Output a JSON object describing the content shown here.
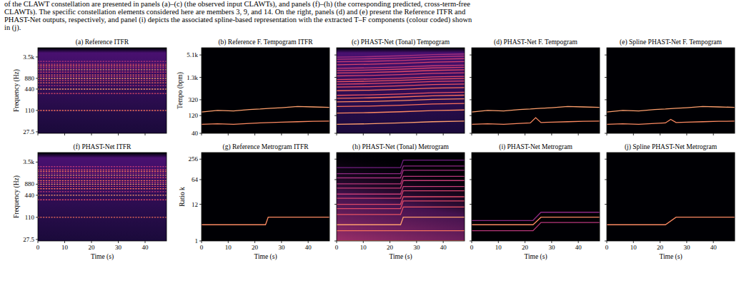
{
  "caption": [
    "of the CLAWT constellation are presented in panels (a)–(c) (the observed input CLAWTs), and panels (f)–(h) (the corresponding predicted, cross-term-free",
    "CLAWTs). The specific constellation elements considered here are members 3, 9, and 14. On the right, panels (d) and (e) present the Reference ITFR and",
    "PHAST-Net outputs, respectively, and panel (i) depicts the associated spline-based representation with the extracted T–F components (colour coded) shown",
    "in (j)."
  ],
  "chart_data": [
    {
      "type": "line",
      "title": "(a) Reference ITFR",
      "ylabel": "Frequency (Hz)",
      "log": "y",
      "tick_labels": "y",
      "line_style": "dotted",
      "xlim": [
        0,
        48
      ],
      "xticks": [
        0,
        10,
        20,
        30,
        40
      ],
      "ylim": [
        25,
        6400
      ],
      "yticks": [
        27.5,
        110,
        440,
        880,
        {
          "value": 3520,
          "label": "3.5k"
        }
      ],
      "x": [
        0,
        48
      ],
      "series": [
        {
          "color": "#f7705c",
          "values": [
            110,
            110
          ]
        },
        {
          "color": "#de4968",
          "values": [
            330,
            330
          ]
        },
        {
          "color": "#fe9f6d",
          "values": [
            440,
            440
          ]
        },
        {
          "color": "#c43c75",
          "values": [
            550,
            550
          ]
        },
        {
          "color": "#f7705c",
          "values": [
            660,
            660
          ]
        },
        {
          "color": "#de4968",
          "values": [
            770,
            770
          ]
        },
        {
          "color": "#fe9f6d",
          "values": [
            880,
            880
          ]
        },
        {
          "color": "#c43c75",
          "values": [
            990,
            990
          ]
        },
        {
          "color": "#f7705c",
          "values": [
            1100,
            1100
          ]
        },
        {
          "color": "#de4968",
          "values": [
            1320,
            1320
          ]
        },
        {
          "color": "#fe9f6d",
          "values": [
            1540,
            1540
          ]
        },
        {
          "color": "#c43c75",
          "values": [
            1760,
            1760
          ]
        },
        {
          "color": "#f7705c",
          "values": [
            1980,
            1980
          ]
        },
        {
          "color": "#de4968",
          "values": [
            2200,
            2200
          ]
        },
        {
          "color": "#b73779",
          "values": [
            2640,
            2640
          ]
        }
      ]
    },
    {
      "type": "line",
      "title": "(b) Reference F. Tempogram ITFR",
      "ylabel": "Tempo (bpm)",
      "log": "y",
      "tick_labels": "y",
      "xlim": [
        0,
        48
      ],
      "xticks": [
        0,
        10,
        20,
        30,
        40
      ],
      "ylim": [
        40,
        8000
      ],
      "yticks": [
        40,
        120,
        320,
        {
          "value": 1280,
          "label": "1.3k"
        },
        {
          "value": 5120,
          "label": "5.1k"
        }
      ],
      "x": [
        0,
        6,
        12,
        18,
        22,
        24,
        26,
        30,
        36,
        42,
        48
      ],
      "series": [
        {
          "color": "#fe9f6d",
          "values": [
            150,
            165,
            160,
            175,
            180,
            185,
            188,
            195,
            210,
            205,
            200
          ]
        },
        {
          "color": "#fc8961",
          "values": [
            70,
            72,
            70,
            74,
            76,
            77,
            78,
            80,
            82,
            84,
            85
          ]
        }
      ]
    },
    {
      "type": "line",
      "title": "(c) PHAST-Net (Tonal) Tempogram",
      "log": "y",
      "tick_labels": false,
      "xlim": [
        0,
        48
      ],
      "xticks": [
        0,
        10,
        20,
        30,
        40
      ],
      "ylim": [
        40,
        8000
      ],
      "yticks": [
        40,
        120,
        320,
        {
          "value": 1280,
          "label": "1.3k"
        },
        {
          "value": 5120,
          "label": "5.1k"
        }
      ],
      "x": [
        0,
        12,
        24,
        36,
        48
      ],
      "series": [
        {
          "color": "#fe9f6d",
          "values": [
            70,
            72,
            76,
            82,
            85
          ]
        },
        {
          "color": "#fc8961",
          "values": [
            140,
            144,
            152,
            164,
            170
          ]
        },
        {
          "color": "#f7705c",
          "values": [
            210,
            216,
            228,
            246,
            255
          ]
        },
        {
          "color": "#fc8961",
          "values": [
            280,
            288,
            304,
            328,
            340
          ]
        },
        {
          "color": "#f7705c",
          "values": [
            350,
            360,
            380,
            410,
            425
          ]
        },
        {
          "color": "#e85362",
          "values": [
            420,
            432,
            456,
            492,
            510
          ]
        },
        {
          "color": "#f7705c",
          "values": [
            560,
            576,
            608,
            656,
            680
          ]
        },
        {
          "color": "#e85362",
          "values": [
            700,
            720,
            760,
            820,
            850
          ]
        },
        {
          "color": "#de4968",
          "values": [
            840,
            864,
            912,
            984,
            1020
          ]
        },
        {
          "color": "#e85362",
          "values": [
            980,
            1008,
            1064,
            1148,
            1190
          ]
        },
        {
          "color": "#de4968",
          "values": [
            1120,
            1152,
            1216,
            1312,
            1360
          ]
        },
        {
          "color": "#d3436e",
          "values": [
            1400,
            1440,
            1520,
            1640,
            1700
          ]
        },
        {
          "color": "#de4968",
          "values": [
            1680,
            1728,
            1824,
            1968,
            2040
          ]
        },
        {
          "color": "#d3436e",
          "values": [
            1960,
            2016,
            2128,
            2296,
            2380
          ]
        },
        {
          "color": "#c43c75",
          "values": [
            2240,
            2304,
            2432,
            2624,
            2720
          ]
        },
        {
          "color": "#d3436e",
          "values": [
            2800,
            2880,
            3040,
            3280,
            3400
          ]
        },
        {
          "color": "#c43c75",
          "values": [
            3360,
            3456,
            3648,
            3936,
            4080
          ]
        },
        {
          "color": "#b73779",
          "values": [
            3920,
            4032,
            4256,
            4592,
            4760
          ]
        },
        {
          "color": "#a3307e",
          "values": [
            4480,
            4608,
            4864,
            5248,
            5440
          ]
        }
      ]
    },
    {
      "type": "line",
      "title": "(d) PHAST-Net F. Tempogram",
      "log": "y",
      "tick_labels": false,
      "xlim": [
        0,
        48
      ],
      "xticks": [
        0,
        10,
        20,
        30,
        40
      ],
      "ylim": [
        40,
        8000
      ],
      "yticks": [
        40,
        120,
        320,
        {
          "value": 1280,
          "label": "1.3k"
        },
        {
          "value": 5120,
          "label": "5.1k"
        }
      ],
      "x": [
        0,
        6,
        12,
        18,
        22,
        24,
        26,
        30,
        36,
        42,
        48
      ],
      "series": [
        {
          "color": "#fe9f6d",
          "values": [
            150,
            165,
            160,
            175,
            180,
            185,
            188,
            195,
            210,
            205,
            200
          ]
        },
        {
          "color": "#fc8961",
          "values": [
            70,
            72,
            70,
            74,
            76,
            105,
            78,
            80,
            82,
            84,
            85
          ]
        }
      ]
    },
    {
      "type": "line",
      "title": "(e) Spline PHAST-Net F. Tempogram",
      "log": "y",
      "tick_labels": false,
      "xlim": [
        0,
        48
      ],
      "xticks": [
        0,
        10,
        20,
        30,
        40
      ],
      "ylim": [
        40,
        8000
      ],
      "yticks": [
        40,
        120,
        320,
        {
          "value": 1280,
          "label": "1.3k"
        },
        {
          "value": 5120,
          "label": "5.1k"
        }
      ],
      "x": [
        0,
        6,
        12,
        18,
        22,
        24,
        26,
        30,
        36,
        42,
        48
      ],
      "series": [
        {
          "color": "#fe9f6d",
          "values": [
            150,
            165,
            160,
            175,
            180,
            185,
            188,
            195,
            210,
            205,
            200
          ]
        },
        {
          "color": "#fc8961",
          "values": [
            70,
            72,
            70,
            74,
            76,
            95,
            78,
            80,
            82,
            84,
            85
          ]
        }
      ]
    },
    {
      "type": "line",
      "title": "(f) PHAST-Net ITFR",
      "ylabel": "Frequency (Hz)",
      "xlabel": "Time (s)",
      "log": "y",
      "tick_labels": true,
      "line_style": "dotted",
      "xlim": [
        0,
        48
      ],
      "xticks": [
        0,
        10,
        20,
        30,
        40
      ],
      "ylim": [
        25,
        6400
      ],
      "yticks": [
        27.5,
        110,
        440,
        880,
        {
          "value": 3520,
          "label": "3.5k"
        }
      ],
      "x": [
        0,
        48
      ],
      "series": [
        {
          "color": "#f7705c",
          "values": [
            110,
            110
          ]
        },
        {
          "color": "#de4968",
          "values": [
            330,
            330
          ]
        },
        {
          "color": "#fe9f6d",
          "values": [
            440,
            440
          ]
        },
        {
          "color": "#c43c75",
          "values": [
            550,
            550
          ]
        },
        {
          "color": "#f7705c",
          "values": [
            660,
            660
          ]
        },
        {
          "color": "#de4968",
          "values": [
            770,
            770
          ]
        },
        {
          "color": "#fe9f6d",
          "values": [
            880,
            880
          ]
        },
        {
          "color": "#c43c75",
          "values": [
            990,
            990
          ]
        },
        {
          "color": "#f7705c",
          "values": [
            1100,
            1100
          ]
        },
        {
          "color": "#de4968",
          "values": [
            1320,
            1320
          ]
        },
        {
          "color": "#fe9f6d",
          "values": [
            1540,
            1540
          ]
        },
        {
          "color": "#c43c75",
          "values": [
            1760,
            1760
          ]
        },
        {
          "color": "#f7705c",
          "values": [
            1980,
            1980
          ]
        },
        {
          "color": "#de4968",
          "values": [
            2200,
            2200
          ]
        },
        {
          "color": "#b73779",
          "values": [
            2640,
            2640
          ]
        }
      ]
    },
    {
      "type": "line",
      "title": "(g) Reference Metrogram ITFR",
      "ylabel": "Ratio k",
      "xlabel": "Time (s)",
      "log": "y",
      "tick_labels": true,
      "xlim": [
        0,
        48
      ],
      "xticks": [
        0,
        10,
        20,
        30,
        40
      ],
      "ylim": [
        1,
        400
      ],
      "yticks": [
        1,
        12,
        64,
        256
      ],
      "x": [
        0,
        24,
        25,
        48
      ],
      "series": [
        {
          "color": "#fc8961",
          "values": [
            3,
            3,
            5,
            5
          ]
        }
      ]
    },
    {
      "type": "line",
      "title": "(h) PHAST-Net (Tonal) Metrogram",
      "xlabel": "Time (s)",
      "log": "y",
      "tick_labels": "x",
      "xlim": [
        0,
        48
      ],
      "xticks": [
        0,
        10,
        20,
        30,
        40
      ],
      "ylim": [
        1,
        400
      ],
      "yticks": [
        1,
        12,
        64,
        256
      ],
      "x": [
        0,
        24,
        25,
        48
      ],
      "series": [
        {
          "color": "#fc8961",
          "values": [
            1,
            1,
            1,
            1
          ]
        },
        {
          "color": "#f7705c",
          "values": [
            2,
            2,
            2,
            2
          ]
        },
        {
          "color": "#fe9f6d",
          "values": [
            3,
            3,
            5,
            5
          ]
        },
        {
          "color": "#e85362",
          "values": [
            6,
            6,
            10,
            10
          ]
        },
        {
          "color": "#de4968",
          "values": [
            9,
            9,
            15,
            15
          ]
        },
        {
          "color": "#de4968",
          "values": [
            12,
            12,
            20,
            20
          ]
        },
        {
          "color": "#d3436e",
          "values": [
            18,
            18,
            30,
            30
          ]
        },
        {
          "color": "#c43c75",
          "values": [
            24,
            24,
            40,
            40
          ]
        },
        {
          "color": "#c43c75",
          "values": [
            36,
            36,
            60,
            60
          ]
        },
        {
          "color": "#b73779",
          "values": [
            48,
            48,
            80,
            80
          ]
        },
        {
          "color": "#a3307e",
          "values": [
            72,
            72,
            120,
            120
          ]
        },
        {
          "color": "#8c2981",
          "values": [
            96,
            96,
            160,
            160
          ]
        },
        {
          "color": "#721f81",
          "values": [
            144,
            144,
            240,
            240
          ]
        }
      ]
    },
    {
      "type": "line",
      "title": "(i) PHAST-Net Metrogram",
      "xlabel": "Time (s)",
      "log": "y",
      "tick_labels": "x",
      "xlim": [
        0,
        48
      ],
      "xticks": [
        0,
        10,
        20,
        30,
        40
      ],
      "ylim": [
        1,
        400
      ],
      "yticks": [
        1,
        12,
        64,
        256
      ],
      "x": [
        0,
        23,
        26,
        48
      ],
      "series": [
        {
          "color": "#b73779",
          "values": [
            2,
            2,
            3.5,
            3.5
          ]
        },
        {
          "color": "#8c2981",
          "values": [
            4,
            4,
            7,
            7
          ]
        },
        {
          "color": "#fc8961",
          "values": [
            3,
            3,
            5,
            5
          ]
        }
      ]
    },
    {
      "type": "line",
      "title": "(j) Spline PHAST-Net Metrogram",
      "xlabel": "Time (s)",
      "log": "y",
      "tick_labels": "x",
      "xlim": [
        0,
        48
      ],
      "xticks": [
        0,
        10,
        20,
        30,
        40
      ],
      "ylim": [
        1,
        400
      ],
      "yticks": [
        1,
        12,
        64,
        256
      ],
      "x": [
        0,
        22,
        26,
        48
      ],
      "series": [
        {
          "color": "#fc8961",
          "values": [
            3,
            3,
            5,
            5
          ]
        }
      ]
    }
  ]
}
